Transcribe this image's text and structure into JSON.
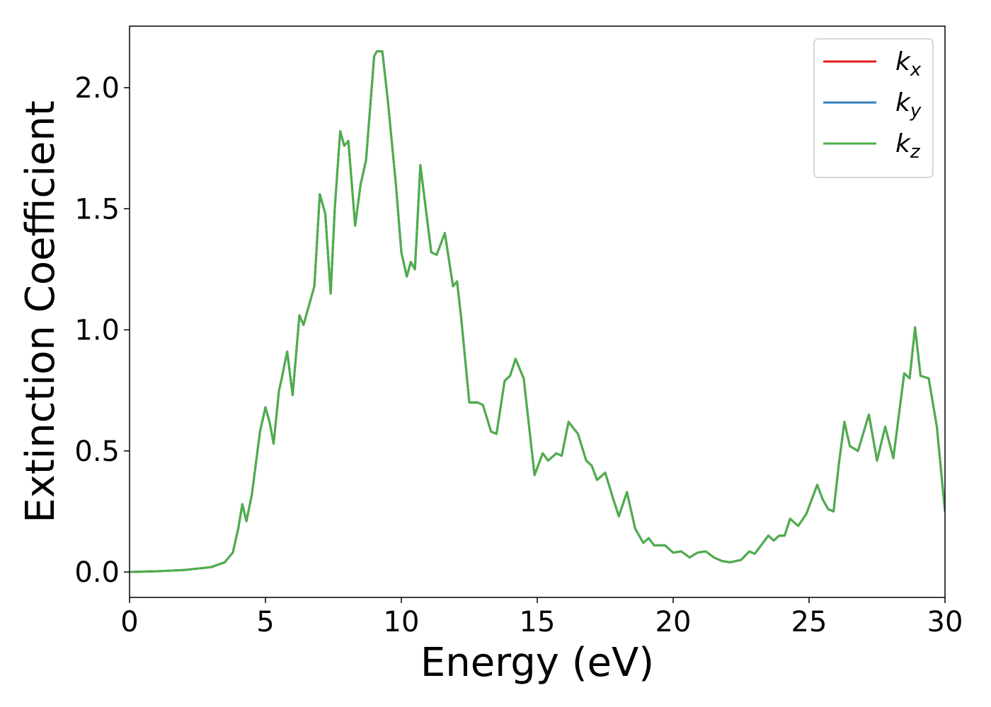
{
  "chart_data": {
    "type": "line",
    "xlabel": "Energy (eV)",
    "ylabel": "Extinction Coefficient",
    "x": [
      0,
      1,
      2,
      3,
      3.5,
      3.8,
      4.0,
      4.15,
      4.3,
      4.5,
      4.8,
      5.0,
      5.15,
      5.3,
      5.5,
      5.6,
      5.8,
      6.0,
      6.25,
      6.4,
      6.6,
      6.8,
      7.0,
      7.2,
      7.4,
      7.55,
      7.75,
      7.9,
      8.05,
      8.3,
      8.5,
      8.7,
      9.0,
      9.1,
      9.3,
      9.5,
      9.8,
      10.0,
      10.2,
      10.35,
      10.5,
      10.7,
      10.9,
      11.1,
      11.3,
      11.6,
      11.9,
      12.05,
      12.2,
      12.5,
      12.8,
      13.0,
      13.3,
      13.5,
      13.8,
      14.0,
      14.2,
      14.5,
      14.7,
      14.9,
      15.2,
      15.4,
      15.7,
      15.9,
      16.15,
      16.5,
      16.8,
      17.0,
      17.2,
      17.5,
      17.8,
      18.0,
      18.3,
      18.6,
      18.9,
      19.1,
      19.3,
      19.7,
      20.0,
      20.3,
      20.6,
      20.9,
      21.2,
      21.5,
      21.8,
      22.1,
      22.5,
      22.8,
      23.0,
      23.3,
      23.5,
      23.7,
      23.9,
      24.1,
      24.3,
      24.6,
      24.9,
      25.3,
      25.5,
      25.7,
      25.9,
      26.1,
      26.3,
      26.5,
      26.8,
      27.2,
      27.5,
      27.8,
      28.1,
      28.5,
      28.7,
      28.9,
      29.1,
      29.4,
      29.7,
      30.0
    ],
    "series": [
      {
        "name": "kx",
        "color": "#e41a1c",
        "values": [
          0,
          0.003,
          0.008,
          0.02,
          0.04,
          0.08,
          0.18,
          0.28,
          0.21,
          0.32,
          0.58,
          0.68,
          0.62,
          0.53,
          0.75,
          0.8,
          0.91,
          0.73,
          1.06,
          1.02,
          1.1,
          1.18,
          1.56,
          1.48,
          1.15,
          1.5,
          1.82,
          1.76,
          1.78,
          1.43,
          1.6,
          1.7,
          2.13,
          2.15,
          2.15,
          1.95,
          1.6,
          1.32,
          1.22,
          1.28,
          1.25,
          1.68,
          1.5,
          1.32,
          1.31,
          1.4,
          1.18,
          1.2,
          1.05,
          0.7,
          0.7,
          0.69,
          0.58,
          0.57,
          0.79,
          0.81,
          0.88,
          0.8,
          0.6,
          0.4,
          0.49,
          0.46,
          0.49,
          0.48,
          0.62,
          0.57,
          0.46,
          0.44,
          0.38,
          0.41,
          0.3,
          0.23,
          0.33,
          0.18,
          0.12,
          0.14,
          0.11,
          0.11,
          0.08,
          0.085,
          0.06,
          0.08,
          0.085,
          0.06,
          0.045,
          0.04,
          0.05,
          0.085,
          0.075,
          0.12,
          0.15,
          0.13,
          0.15,
          0.15,
          0.22,
          0.19,
          0.24,
          0.36,
          0.3,
          0.26,
          0.25,
          0.45,
          0.62,
          0.52,
          0.5,
          0.65,
          0.46,
          0.6,
          0.47,
          0.82,
          0.8,
          1.01,
          0.81,
          0.8,
          0.6,
          0.25
        ]
      },
      {
        "name": "ky",
        "color": "#377eb8",
        "values": [
          0,
          0.003,
          0.008,
          0.02,
          0.04,
          0.08,
          0.18,
          0.28,
          0.21,
          0.32,
          0.58,
          0.68,
          0.62,
          0.53,
          0.75,
          0.8,
          0.91,
          0.73,
          1.06,
          1.02,
          1.1,
          1.18,
          1.56,
          1.48,
          1.15,
          1.5,
          1.82,
          1.76,
          1.78,
          1.43,
          1.6,
          1.7,
          2.13,
          2.15,
          2.15,
          1.95,
          1.6,
          1.32,
          1.22,
          1.28,
          1.25,
          1.68,
          1.5,
          1.32,
          1.31,
          1.4,
          1.18,
          1.2,
          1.05,
          0.7,
          0.7,
          0.69,
          0.58,
          0.57,
          0.79,
          0.81,
          0.88,
          0.8,
          0.6,
          0.4,
          0.49,
          0.46,
          0.49,
          0.48,
          0.62,
          0.57,
          0.46,
          0.44,
          0.38,
          0.41,
          0.3,
          0.23,
          0.33,
          0.18,
          0.12,
          0.14,
          0.11,
          0.11,
          0.08,
          0.085,
          0.06,
          0.08,
          0.085,
          0.06,
          0.045,
          0.04,
          0.05,
          0.085,
          0.075,
          0.12,
          0.15,
          0.13,
          0.15,
          0.15,
          0.22,
          0.19,
          0.24,
          0.36,
          0.3,
          0.26,
          0.25,
          0.45,
          0.62,
          0.52,
          0.5,
          0.65,
          0.46,
          0.6,
          0.47,
          0.82,
          0.8,
          1.01,
          0.81,
          0.8,
          0.6,
          0.25
        ]
      },
      {
        "name": "kz",
        "color": "#4daf4a",
        "values": [
          0,
          0.003,
          0.008,
          0.02,
          0.04,
          0.08,
          0.18,
          0.28,
          0.21,
          0.32,
          0.58,
          0.68,
          0.62,
          0.53,
          0.75,
          0.8,
          0.91,
          0.73,
          1.06,
          1.02,
          1.1,
          1.18,
          1.56,
          1.48,
          1.15,
          1.5,
          1.82,
          1.76,
          1.78,
          1.43,
          1.6,
          1.7,
          2.13,
          2.15,
          2.15,
          1.95,
          1.6,
          1.32,
          1.22,
          1.28,
          1.25,
          1.68,
          1.5,
          1.32,
          1.31,
          1.4,
          1.18,
          1.2,
          1.05,
          0.7,
          0.7,
          0.69,
          0.58,
          0.57,
          0.79,
          0.81,
          0.88,
          0.8,
          0.6,
          0.4,
          0.49,
          0.46,
          0.49,
          0.48,
          0.62,
          0.57,
          0.46,
          0.44,
          0.38,
          0.41,
          0.3,
          0.23,
          0.33,
          0.18,
          0.12,
          0.14,
          0.11,
          0.11,
          0.08,
          0.085,
          0.06,
          0.08,
          0.085,
          0.06,
          0.045,
          0.04,
          0.05,
          0.085,
          0.075,
          0.12,
          0.15,
          0.13,
          0.15,
          0.15,
          0.22,
          0.19,
          0.24,
          0.36,
          0.3,
          0.26,
          0.25,
          0.45,
          0.62,
          0.52,
          0.5,
          0.65,
          0.46,
          0.6,
          0.47,
          0.82,
          0.8,
          1.01,
          0.81,
          0.8,
          0.6,
          0.25
        ]
      }
    ],
    "xlim": [
      0,
      30
    ],
    "xticks": [
      0,
      5,
      10,
      15,
      20,
      25,
      30
    ],
    "ylim": [
      -0.105,
      2.254
    ],
    "yticks": [
      {
        "value": 0,
        "label": "0.0"
      },
      0.5,
      {
        "value": 1,
        "label": "1.0"
      },
      1.5,
      {
        "value": 2,
        "label": "2.0"
      }
    ],
    "grid": false,
    "legend": "upper right"
  }
}
